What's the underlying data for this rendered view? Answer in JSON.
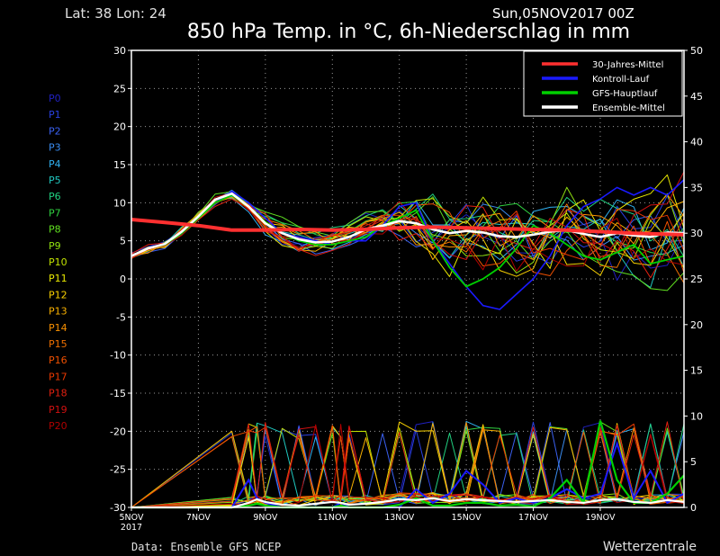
{
  "header": {
    "location": "Lat: 38 Lon: 24",
    "run_time": "Sun,05NOV2017 00Z",
    "title": "850 hPa Temp. in °C, 6h-Niederschlag in mm"
  },
  "footer": {
    "source": "Data: Ensemble GFS NCEP",
    "brand": "Wetterzentrale"
  },
  "chart_data": {
    "type": "line",
    "title": "850 hPa Temp. in °C, 6h-Niederschlag in mm",
    "x_domain_days": [
      0,
      16.5
    ],
    "x_ticks": [
      {
        "day": 0,
        "label": "5NOV",
        "sub": "2017"
      },
      {
        "day": 2,
        "label": "7NOV"
      },
      {
        "day": 4,
        "label": "9NOV"
      },
      {
        "day": 6,
        "label": "11NOV"
      },
      {
        "day": 8,
        "label": "13NOV"
      },
      {
        "day": 10,
        "label": "15NOV"
      },
      {
        "day": 12,
        "label": "17NOV"
      },
      {
        "day": 14,
        "label": "19NOV"
      }
    ],
    "y_left": {
      "min": -30,
      "max": 30,
      "step": 5,
      "unit": "°C"
    },
    "y_right": {
      "min": 0,
      "max": 50,
      "step": 5,
      "unit": "mm"
    },
    "grid": true,
    "legend_position": "top-right",
    "legend": [
      {
        "label": "30-Jahres-Mittel",
        "color": "#ff3030"
      },
      {
        "label": "Kontroll-Lauf",
        "color": "#1a1aff"
      },
      {
        "label": "GFS-Hauptlauf",
        "color": "#00d000"
      },
      {
        "label": "Ensemble-Mittel",
        "color": "#ffffff"
      }
    ],
    "member_labels": [
      {
        "label": "P0",
        "color": "#2020c0"
      },
      {
        "label": "P1",
        "color": "#2a40e0"
      },
      {
        "label": "P2",
        "color": "#3a60f0"
      },
      {
        "label": "P3",
        "color": "#3a8cf0"
      },
      {
        "label": "P4",
        "color": "#30b0f0"
      },
      {
        "label": "P5",
        "color": "#20c8c0"
      },
      {
        "label": "P6",
        "color": "#20d080"
      },
      {
        "label": "P7",
        "color": "#30d040"
      },
      {
        "label": "P8",
        "color": "#60e020"
      },
      {
        "label": "P9",
        "color": "#90e010"
      },
      {
        "label": "P10",
        "color": "#c0e000"
      },
      {
        "label": "P11",
        "color": "#e8e800"
      },
      {
        "label": "P12",
        "color": "#f8d000"
      },
      {
        "label": "P13",
        "color": "#f8b000"
      },
      {
        "label": "P14",
        "color": "#f89000"
      },
      {
        "label": "P15",
        "color": "#f07000"
      },
      {
        "label": "P16",
        "color": "#f05000"
      },
      {
        "label": "P17",
        "color": "#e83800"
      },
      {
        "label": "P18",
        "color": "#e02010"
      },
      {
        "label": "P19",
        "color": "#d01010"
      },
      {
        "label": "P20",
        "color": "#b00000"
      }
    ],
    "clim_30yr": {
      "days": [
        0,
        1,
        2,
        3,
        4,
        5,
        6,
        7,
        8,
        9,
        10,
        11,
        12,
        13,
        14,
        15,
        16.5
      ],
      "values": [
        7.8,
        7.4,
        7.0,
        6.4,
        6.4,
        6.5,
        6.4,
        6.5,
        6.7,
        6.8,
        6.7,
        6.6,
        6.5,
        6.4,
        6.2,
        6.0,
        5.8
      ]
    },
    "control_run": {
      "days": [
        0,
        0.5,
        1,
        1.5,
        2,
        2.5,
        3,
        3.5,
        4,
        4.5,
        5,
        5.5,
        6,
        6.5,
        7,
        7.5,
        8,
        8.5,
        9,
        9.5,
        10,
        10.5,
        11,
        11.5,
        12,
        12.5,
        13,
        13.5,
        14,
        14.5,
        15,
        15.5,
        16,
        16.5
      ],
      "values": [
        3.0,
        4.0,
        4.5,
        6.0,
        8.0,
        10.0,
        11.5,
        10.0,
        8.0,
        6.0,
        5.5,
        5.0,
        4.5,
        5.0,
        5.0,
        7.0,
        9.5,
        10.0,
        5.0,
        2.0,
        -1.0,
        -3.5,
        -4.0,
        -2.0,
        0.0,
        3.0,
        7.0,
        9.5,
        10.5,
        12.0,
        11.0,
        12.0,
        11.0,
        13.0
      ]
    },
    "main_run": {
      "days": [
        0,
        0.5,
        1,
        1.5,
        2,
        2.5,
        3,
        3.5,
        4,
        4.5,
        5,
        5.5,
        6,
        6.5,
        7,
        7.5,
        8,
        8.5,
        9,
        9.5,
        10,
        10.5,
        11,
        11.5,
        12,
        12.5,
        13,
        13.5,
        14,
        14.5,
        15,
        15.5,
        16,
        16.5
      ],
      "values": [
        3.0,
        4.0,
        4.5,
        6.0,
        8.0,
        10.0,
        11.0,
        9.5,
        7.5,
        6.0,
        5.0,
        4.5,
        4.5,
        5.0,
        5.5,
        7.0,
        8.0,
        9.0,
        5.0,
        1.5,
        -1.0,
        0.0,
        1.5,
        4.0,
        7.0,
        6.0,
        4.5,
        3.0,
        2.5,
        3.5,
        4.5,
        2.0,
        2.5,
        3.0
      ]
    },
    "ensemble_mean": {
      "days": [
        0,
        0.5,
        1,
        1.5,
        2,
        2.5,
        3,
        3.5,
        4,
        4.5,
        5,
        5.5,
        6,
        6.5,
        7,
        7.5,
        8,
        8.5,
        9,
        9.5,
        10,
        10.5,
        11,
        11.5,
        12,
        12.5,
        13,
        13.5,
        14,
        14.5,
        15,
        15.5,
        16,
        16.5
      ],
      "values": [
        3.0,
        4.0,
        4.6,
        6.2,
        8.2,
        10.4,
        11.2,
        9.5,
        7.3,
        6.0,
        5.2,
        4.8,
        4.9,
        5.5,
        6.5,
        7.0,
        7.6,
        7.3,
        6.5,
        6.0,
        6.3,
        6.1,
        5.6,
        5.5,
        5.8,
        6.2,
        6.4,
        5.9,
        5.5,
        6.0,
        5.7,
        5.5,
        6.1,
        6.0
      ]
    },
    "precip_mm": {
      "days": [
        0,
        3.0,
        3.5,
        3.75,
        4.0,
        4.5,
        5.0,
        5.5,
        6.0,
        6.25,
        6.5,
        7.0,
        7.5,
        8.0,
        8.5,
        9.0,
        9.5,
        10.0,
        10.5,
        11.0,
        11.5,
        12.0,
        12.5,
        13.0,
        13.5,
        14.0,
        14.5,
        15.0,
        15.5,
        16.0,
        16.5
      ],
      "ensemble_mean": [
        0,
        0,
        0.5,
        0.9,
        0.6,
        0.3,
        0.2,
        0.4,
        0.6,
        0.5,
        0.3,
        0.4,
        0.6,
        0.9,
        0.8,
        1.0,
        0.7,
        0.9,
        0.8,
        0.7,
        0.6,
        0.7,
        0.8,
        0.6,
        0.5,
        0.8,
        0.9,
        0.6,
        0.5,
        0.8,
        0.6
      ],
      "control_run": [
        0,
        0,
        3.0,
        1.0,
        0.5,
        0,
        0,
        0,
        0,
        0.5,
        0,
        0,
        0,
        0,
        2.0,
        0.5,
        1.5,
        4.0,
        2.5,
        0.5,
        1.0,
        0.5,
        1.0,
        2.0,
        1.0,
        1.5,
        7.0,
        1.0,
        4.0,
        0.5,
        1.5
      ],
      "main_run": [
        0,
        0,
        0.2,
        0.4,
        0.2,
        0,
        0,
        0,
        0,
        0.2,
        0,
        0,
        0,
        0.3,
        1.0,
        0.2,
        0.2,
        0.5,
        0.5,
        0.2,
        0.3,
        0.1,
        1.0,
        3.0,
        0.5,
        9.5,
        3.0,
        0.5,
        0.5,
        1.5,
        3.5
      ]
    }
  }
}
